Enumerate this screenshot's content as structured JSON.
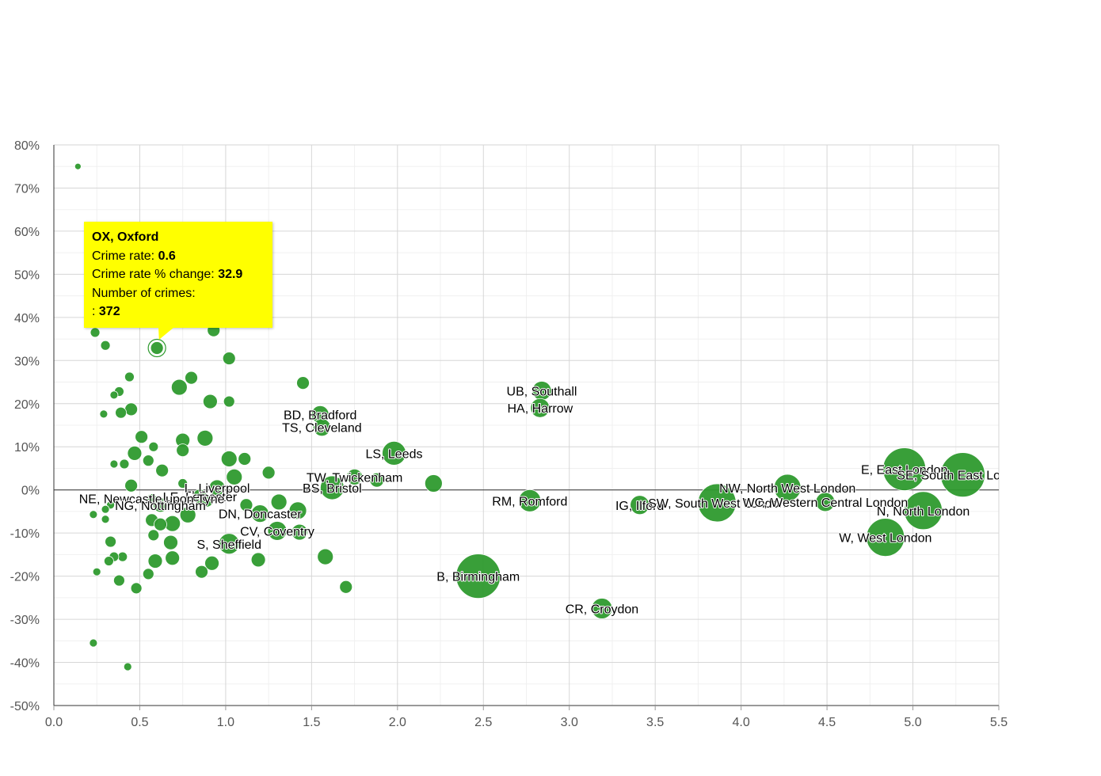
{
  "chart_data": {
    "type": "scatter",
    "title": "",
    "xlabel": "",
    "ylabel": "",
    "xlim": [
      0,
      5.5
    ],
    "ylim": [
      -50,
      80
    ],
    "x_ticks": [
      "0.0",
      "0.5",
      "1.0",
      "1.5",
      "2.0",
      "2.5",
      "3.0",
      "3.5",
      "4.0",
      "4.5",
      "5.0",
      "5.5"
    ],
    "y_ticks": [
      "80%",
      "70%",
      "60%",
      "50%",
      "40%",
      "30%",
      "20%",
      "10%",
      "0%",
      "-10%",
      "-20%",
      "-30%",
      "-40%",
      "-50%"
    ],
    "grid": true,
    "bubble_color": "#2e9a2e",
    "points": [
      {
        "x": 0.14,
        "y": 75,
        "r": 4
      },
      {
        "x": 0.24,
        "y": 36.5,
        "r": 6
      },
      {
        "x": 0.3,
        "y": 33.5,
        "r": 6
      },
      {
        "x": 0.6,
        "y": 32.9,
        "r": 8,
        "label": "OX, Oxford",
        "crimes": 372,
        "highlighted": true
      },
      {
        "x": 0.93,
        "y": 37,
        "r": 8
      },
      {
        "x": 1.02,
        "y": 30.5,
        "r": 8
      },
      {
        "x": 0.44,
        "y": 26.2,
        "r": 6
      },
      {
        "x": 0.8,
        "y": 26,
        "r": 8
      },
      {
        "x": 0.73,
        "y": 23.8,
        "r": 10
      },
      {
        "x": 0.38,
        "y": 22.8,
        "r": 6
      },
      {
        "x": 0.35,
        "y": 22,
        "r": 5
      },
      {
        "x": 0.91,
        "y": 20.5,
        "r": 9
      },
      {
        "x": 1.02,
        "y": 20.5,
        "r": 7
      },
      {
        "x": 1.45,
        "y": 24.8,
        "r": 8
      },
      {
        "x": 0.45,
        "y": 18.7,
        "r": 8
      },
      {
        "x": 0.39,
        "y": 17.9,
        "r": 7
      },
      {
        "x": 0.29,
        "y": 17.6,
        "r": 5
      },
      {
        "x": 1.55,
        "y": 17.5,
        "r": 11,
        "label": "BD, Bradford"
      },
      {
        "x": 1.56,
        "y": 14.5,
        "r": 11,
        "label": "TS, Cleveland"
      },
      {
        "x": 0.51,
        "y": 12.3,
        "r": 8
      },
      {
        "x": 0.75,
        "y": 11.5,
        "r": 9
      },
      {
        "x": 0.88,
        "y": 12,
        "r": 10
      },
      {
        "x": 0.58,
        "y": 10,
        "r": 6
      },
      {
        "x": 0.75,
        "y": 9.2,
        "r": 8
      },
      {
        "x": 0.47,
        "y": 8.5,
        "r": 9
      },
      {
        "x": 1.02,
        "y": 7.2,
        "r": 10
      },
      {
        "x": 1.11,
        "y": 7.2,
        "r": 8
      },
      {
        "x": 0.55,
        "y": 6.8,
        "r": 7
      },
      {
        "x": 0.41,
        "y": 6,
        "r": 6
      },
      {
        "x": 0.35,
        "y": 6,
        "r": 5
      },
      {
        "x": 0.63,
        "y": 4.5,
        "r": 8
      },
      {
        "x": 1.25,
        "y": 4,
        "r": 8
      },
      {
        "x": 1.98,
        "y": 8.5,
        "r": 15,
        "label": "LS, Leeds"
      },
      {
        "x": 1.05,
        "y": 3,
        "r": 10
      },
      {
        "x": 1.75,
        "y": 3,
        "r": 10,
        "label": "TW, Twickenham"
      },
      {
        "x": 1.88,
        "y": 2.3,
        "r": 9
      },
      {
        "x": 2.21,
        "y": 1.5,
        "r": 11
      },
      {
        "x": 0.45,
        "y": 1,
        "r": 8
      },
      {
        "x": 0.75,
        "y": 1.5,
        "r": 6
      },
      {
        "x": 0.95,
        "y": 0.5,
        "r": 10,
        "label": "L, Liverpool"
      },
      {
        "x": 1.62,
        "y": 0.5,
        "r": 15,
        "label": "BS, Bristol"
      },
      {
        "x": 0.85,
        "y": -1.5,
        "r": 9,
        "label": "LE, Leicester"
      },
      {
        "x": 0.57,
        "y": -2,
        "r": 6,
        "label": "NE, Newcastle upon Tyne"
      },
      {
        "x": 0.89,
        "y": -2.5,
        "r": 8
      },
      {
        "x": 1.12,
        "y": -3.5,
        "r": 8
      },
      {
        "x": 1.31,
        "y": -2.8,
        "r": 10
      },
      {
        "x": 0.62,
        "y": -3.5,
        "r": 9,
        "label": "NG, Nottingham"
      },
      {
        "x": 0.33,
        "y": -3.5,
        "r": 5
      },
      {
        "x": 0.3,
        "y": -4.5,
        "r": 5
      },
      {
        "x": 1.42,
        "y": -4.8,
        "r": 11
      },
      {
        "x": 1.2,
        "y": -5.5,
        "r": 11,
        "label": "DN, Doncaster"
      },
      {
        "x": 0.23,
        "y": -5.7,
        "r": 5
      },
      {
        "x": 0.78,
        "y": -5.8,
        "r": 10
      },
      {
        "x": 0.3,
        "y": -6.8,
        "r": 5
      },
      {
        "x": 0.57,
        "y": -7,
        "r": 8
      },
      {
        "x": 0.69,
        "y": -7.8,
        "r": 10
      },
      {
        "x": 0.62,
        "y": -8,
        "r": 8
      },
      {
        "x": 1.3,
        "y": -9.5,
        "r": 12,
        "label": "CV, Coventry"
      },
      {
        "x": 1.43,
        "y": -9.8,
        "r": 10
      },
      {
        "x": 0.58,
        "y": -10.5,
        "r": 7
      },
      {
        "x": 0.33,
        "y": -12,
        "r": 7
      },
      {
        "x": 0.68,
        "y": -12.2,
        "r": 9
      },
      {
        "x": 1.02,
        "y": -12.5,
        "r": 13,
        "label": "S, Sheffield"
      },
      {
        "x": 0.4,
        "y": -15.5,
        "r": 6
      },
      {
        "x": 0.35,
        "y": -15.5,
        "r": 6
      },
      {
        "x": 0.32,
        "y": -16.5,
        "r": 6
      },
      {
        "x": 0.59,
        "y": -16.5,
        "r": 9
      },
      {
        "x": 0.69,
        "y": -15.8,
        "r": 9
      },
      {
        "x": 1.19,
        "y": -16.2,
        "r": 9
      },
      {
        "x": 1.58,
        "y": -15.5,
        "r": 10
      },
      {
        "x": 0.92,
        "y": -17,
        "r": 9
      },
      {
        "x": 0.25,
        "y": -19,
        "r": 5
      },
      {
        "x": 0.55,
        "y": -19.5,
        "r": 7
      },
      {
        "x": 0.86,
        "y": -19,
        "r": 8
      },
      {
        "x": 0.38,
        "y": -21,
        "r": 7
      },
      {
        "x": 0.48,
        "y": -22.8,
        "r": 7
      },
      {
        "x": 1.7,
        "y": -22.5,
        "r": 8
      },
      {
        "x": 0.23,
        "y": -35.5,
        "r": 5
      },
      {
        "x": 0.43,
        "y": -41,
        "r": 5
      },
      {
        "x": 2.84,
        "y": 23,
        "r": 12,
        "label": "UB, Southall"
      },
      {
        "x": 2.83,
        "y": 19,
        "r": 12,
        "label": "HA, Harrow"
      },
      {
        "x": 2.77,
        "y": -2.5,
        "r": 14,
        "label": "RM, Romford"
      },
      {
        "x": 2.47,
        "y": -20,
        "r": 28,
        "label": "B, Birmingham"
      },
      {
        "x": 3.19,
        "y": -27.5,
        "r": 13,
        "label": "CR, Croydon"
      },
      {
        "x": 3.41,
        "y": -3.5,
        "r": 12,
        "label": "IG, Ilford"
      },
      {
        "x": 3.86,
        "y": -3,
        "r": 24,
        "label": "SW, South West London"
      },
      {
        "x": 4.27,
        "y": 0.5,
        "r": 17,
        "label": "NW, North West London"
      },
      {
        "x": 4.49,
        "y": -2.8,
        "r": 12,
        "label": "WC, Western Central London"
      },
      {
        "x": 4.95,
        "y": 4.8,
        "r": 27,
        "label": "E, East London"
      },
      {
        "x": 5.29,
        "y": 3.5,
        "r": 28,
        "label": "SE, South East London"
      },
      {
        "x": 5.06,
        "y": -4.8,
        "r": 24,
        "label": "N, North London"
      },
      {
        "x": 4.84,
        "y": -11,
        "r": 24,
        "label": "W, West London"
      }
    ],
    "tooltip": {
      "title": "OX, Oxford",
      "rate_label": "Crime rate:",
      "rate_value": "0.6",
      "change_label": "Crime rate % change:",
      "change_value": "32.9",
      "crimes_label": "Number of crimes:",
      "crimes_prefix": ":",
      "crimes_value": "372"
    }
  }
}
